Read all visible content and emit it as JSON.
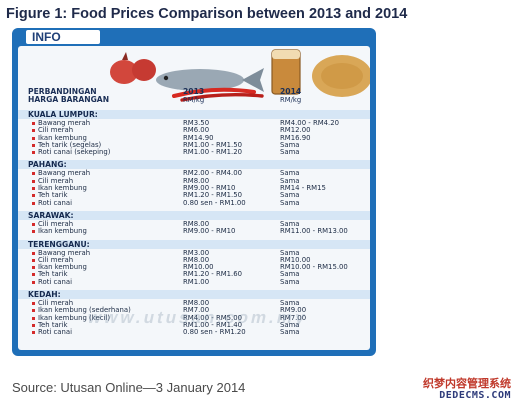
{
  "figure_title": "Figure 1: Food Prices Comparison between 2013 and 2014",
  "infographic": {
    "tab_label": "INFO",
    "header": {
      "col1_line1": "PERBANDINGAN",
      "col1_line2": "HARGA BARANGAN",
      "col2_year": "2013",
      "col2_unit": "RM/kg",
      "col3_year": "2014",
      "col3_unit": "RM/kg"
    },
    "regions": [
      {
        "name": "KUALA LUMPUR:",
        "items": [
          {
            "name": "Bawang merah",
            "p2013": "RM3.50",
            "p2014": "RM4.00 - RM4.20"
          },
          {
            "name": "Cili merah",
            "p2013": "RM6.00",
            "p2014": "RM12.00"
          },
          {
            "name": "Ikan kembung",
            "p2013": "RM14.90",
            "p2014": "RM16.90"
          },
          {
            "name": "Teh tarik (segelas)",
            "p2013": "RM1.00 - RM1.50",
            "p2014": "Sama"
          },
          {
            "name": "Roti canai (sekeping)",
            "p2013": "RM1.00 - RM1.20",
            "p2014": "Sama"
          }
        ]
      },
      {
        "name": "PAHANG:",
        "items": [
          {
            "name": "Bawang merah",
            "p2013": "RM2.00 - RM4.00",
            "p2014": "Sama"
          },
          {
            "name": "Cili merah",
            "p2013": "RM8.00",
            "p2014": "Sama"
          },
          {
            "name": "Ikan kembung",
            "p2013": "RM9.00 - RM10",
            "p2014": "RM14 - RM15"
          },
          {
            "name": "Teh tarik",
            "p2013": "RM1.20 - RM1.50",
            "p2014": "Sama"
          },
          {
            "name": "Roti canai",
            "p2013": "0.80 sen - RM1.00",
            "p2014": "Sama"
          }
        ]
      },
      {
        "name": "SARAWAK:",
        "items": [
          {
            "name": "Cili merah",
            "p2013": "RM8.00",
            "p2014": "Sama"
          },
          {
            "name": "Ikan kembung",
            "p2013": "RM9.00 - RM10",
            "p2014": "RM11.00 - RM13.00"
          }
        ]
      },
      {
        "name": "TERENGGANU:",
        "items": [
          {
            "name": "Bawang merah",
            "p2013": "RM3.00",
            "p2014": "Sama"
          },
          {
            "name": "Cili merah",
            "p2013": "RM8.00",
            "p2014": "RM10.00"
          },
          {
            "name": "Ikan kembung",
            "p2013": "RM10.00",
            "p2014": "RM10.00 - RM15.00"
          },
          {
            "name": "Teh tarik",
            "p2013": "RM1.20 - RM1.60",
            "p2014": "Sama"
          },
          {
            "name": "Roti canai",
            "p2013": "RM1.00",
            "p2014": "Sama"
          }
        ]
      },
      {
        "name": "KEDAH:",
        "items": [
          {
            "name": "Cili merah",
            "p2013": "RM8.00",
            "p2014": "Sama"
          },
          {
            "name": "Ikan kembung (sederhana)",
            "p2013": "RM7.00",
            "p2014": "RM9.00"
          },
          {
            "name": "Ikan kembung (kecil)",
            "p2013": "RM4.00 - RM5.00",
            "p2014": "RM7.00"
          },
          {
            "name": "Teh tarik",
            "p2013": "RM1.00 - RM1.40",
            "p2014": "Sama"
          },
          {
            "name": "Roti canai",
            "p2013": "0.80 sen - RM1.20",
            "p2014": "Sama"
          }
        ]
      }
    ],
    "watermark": "www.utusan.com.my"
  },
  "source": "Source: Utusan Online—3 January 2014",
  "stamp": {
    "chinese": "织梦内容管理系统",
    "url": "DEDECMS.COM"
  },
  "colors": {
    "frame_blue": "#1f6fb8",
    "region_band": "#d6e6f5",
    "bullet_red": "#d42b2b"
  }
}
